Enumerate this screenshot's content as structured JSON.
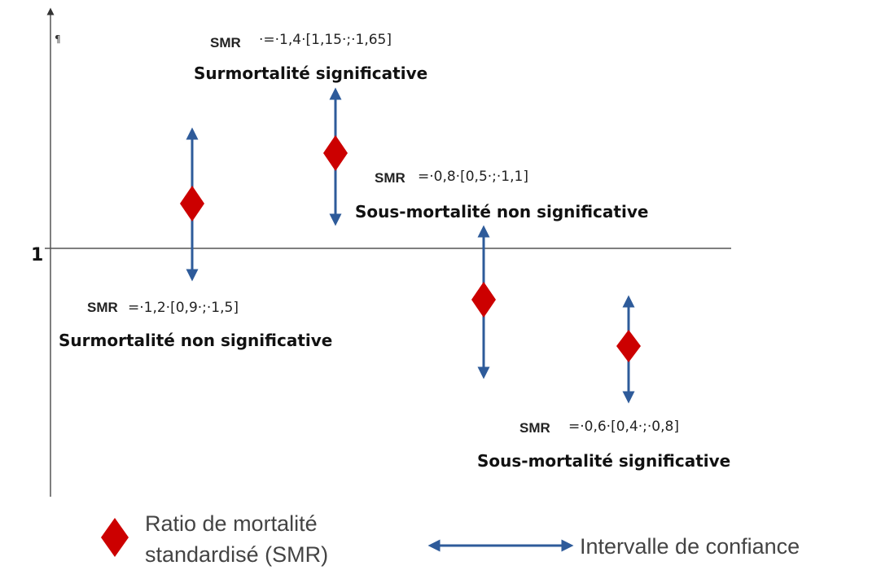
{
  "axis": {
    "pilcrow": "¶",
    "reference": "1"
  },
  "annotations": [
    {
      "smr": "SMR",
      "value": "=·1,2·[0,9·;·1,5]",
      "caption": "Surmortalité non significative"
    },
    {
      "smr": "SMR",
      "value": "·=·1,4·[1,15·;·1,65]",
      "caption": "Surmortalité significative"
    },
    {
      "smr": "SMR",
      "value": "=·0,8·[0,5·;·1,1]",
      "caption": "Sous-mortalité non significative"
    },
    {
      "smr": "SMR",
      "value": "=·0,6·[0,4·;·0,8]",
      "caption": "Sous-mortalité significative"
    }
  ],
  "legend": {
    "ratio_line1": "Ratio de mortalité",
    "ratio_line2": "standardisé (SMR)",
    "interval": "Intervalle de confiance"
  }
}
